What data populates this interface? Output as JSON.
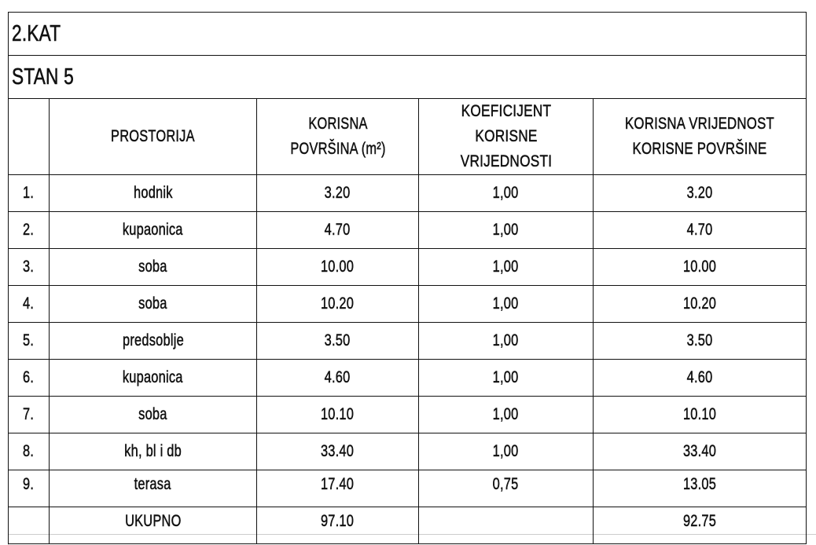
{
  "floor": "2.KAT",
  "unit": "STAN 5",
  "headers": [
    "",
    "PROSTORIJA",
    "KORISNA POVRŠINA (m²)",
    "KOEFICIJENT KORISNE VRIJEDNOSTI",
    "KORISNA VRIJEDNOST KORISNE POVRŠINE"
  ],
  "rows": [
    [
      "1.",
      "hodnik",
      "3.20",
      "1,00",
      "3.20"
    ],
    [
      "2.",
      "kupaonica",
      "4.70",
      "1,00",
      "4.70"
    ],
    [
      "3.",
      "soba",
      "10.00",
      "1,00",
      "10.00"
    ],
    [
      "4.",
      "soba",
      "10.20",
      "1,00",
      "10.20"
    ],
    [
      "5.",
      "predsoblje",
      "3.50",
      "1,00",
      "3.50"
    ],
    [
      "6.",
      "kupaonica",
      "4.60",
      "1,00",
      "4.60"
    ],
    [
      "7.",
      "soba",
      "10.10",
      "1,00",
      "10.10"
    ],
    [
      "8.",
      "kh, bl i db",
      "33.40",
      "1,00",
      "33.40"
    ],
    [
      "9.",
      "terasa",
      "17.40",
      "0,75",
      "13.05"
    ]
  ],
  "total": {
    "label": "UKUPNO",
    "area": "97.10",
    "value": "92.75"
  }
}
